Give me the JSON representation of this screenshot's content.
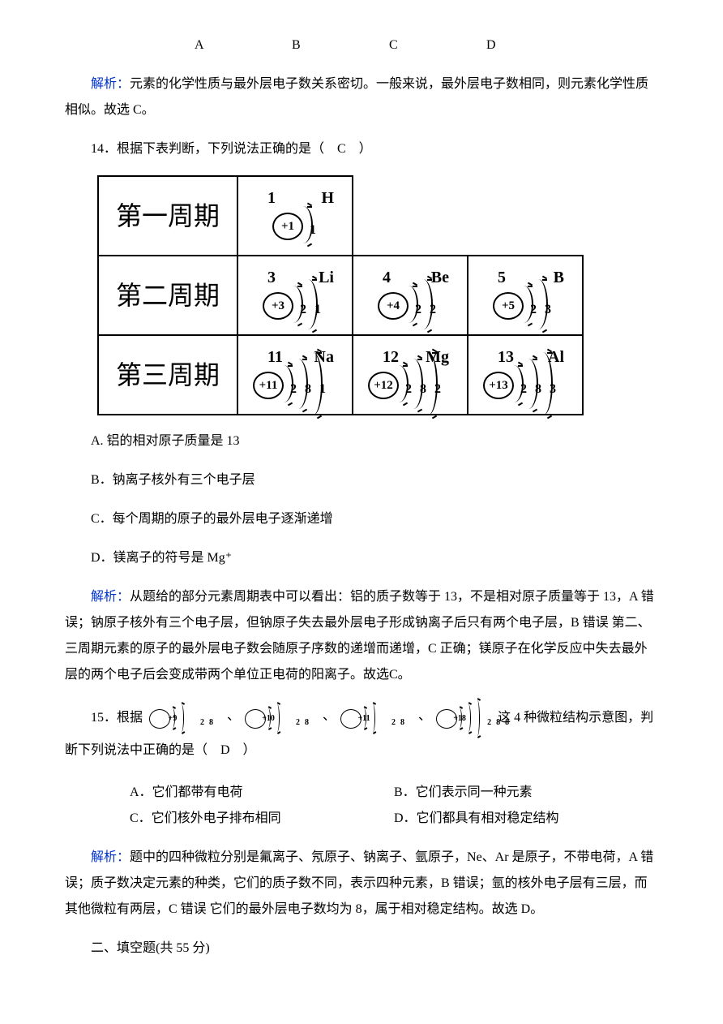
{
  "abcd": {
    "a": "A",
    "b": "B",
    "c": "C",
    "d": "D"
  },
  "analysis_label": "解析：",
  "q13_analysis": "元素的化学性质与最外层电子数关系密切。一般来说，最外层电子数相同，则元素化学性质相似。故选 C。",
  "q14": {
    "stem": "14．根据下表判断，下列说法正确的是（　C　）",
    "rows": [
      {
        "label": "第一周期",
        "cells": [
          {
            "num": "1",
            "sym": "H",
            "nuc": "+1",
            "shells": [
              "1"
            ]
          }
        ],
        "blanks": 2
      },
      {
        "label": "第二周期",
        "cells": [
          {
            "num": "3",
            "sym": "Li",
            "nuc": "+3",
            "shells": [
              "2",
              "1"
            ]
          },
          {
            "num": "4",
            "sym": "Be",
            "nuc": "+4",
            "shells": [
              "2",
              "2"
            ]
          },
          {
            "num": "5",
            "sym": "B",
            "nuc": "+5",
            "shells": [
              "2",
              "3"
            ]
          }
        ],
        "blanks": 0
      },
      {
        "label": "第三周期",
        "cells": [
          {
            "num": "11",
            "sym": "Na",
            "nuc": "+11",
            "shells": [
              "2",
              "8",
              "1"
            ]
          },
          {
            "num": "12",
            "sym": "Mg",
            "nuc": "+12",
            "shells": [
              "2",
              "8",
              "2"
            ]
          },
          {
            "num": "13",
            "sym": "Al",
            "nuc": "+13",
            "shells": [
              "2",
              "8",
              "3"
            ]
          }
        ],
        "blanks": 0
      }
    ],
    "opts": {
      "a": "A. 铝的相对原子质量是 13",
      "b": "B．钠离子核外有三个电子层",
      "c": "C．每个周期的原子的最外层电子逐渐递增",
      "d": "D．镁离子的符号是 Mg⁺"
    },
    "analysis": "从题给的部分元素周期表中可以看出：铝的质子数等于 13，不是相对原子质量等于 13，A 错误；钠原子核外有三个电子层，但钠原子失去最外层电子形成钠离子后只有两个电子层，B 错误 第二、三周期元素的原子的最外层电子数会随原子序数的递增而递增，C 正确；镁原子在化学反应中失去最外层的两个电子后会变成带两个单位正电荷的阳离子。故选C。"
  },
  "q15": {
    "stem_a": "15．根据",
    "stem_b": "这 4 种微粒结构示意图，判断下列说法中正确的是（　D　）",
    "particles": [
      {
        "nuc": "+9",
        "shells": [
          "2",
          "8"
        ]
      },
      {
        "nuc": "+10",
        "shells": [
          "2",
          "8"
        ]
      },
      {
        "nuc": "+11",
        "shells": [
          "2",
          "8"
        ]
      },
      {
        "nuc": "+18",
        "shells": [
          "2",
          "8",
          "8"
        ]
      }
    ],
    "opts": {
      "a": "A．它们都带有电荷",
      "b": "B．它们表示同一种元素",
      "c": "C．它们核外电子排布相同",
      "d": "D．它们都具有相对稳定结构"
    },
    "analysis": "题中的四种微粒分别是氟离子、氖原子、钠离子、氩原子，Ne、Ar 是原子，不带电荷，A 错误；质子数决定元素的种类，它们的质子数不同，表示四种元素，B 错误；氩的核外电子层有三层，而其他微粒有两层，C 错误 它们的最外层电子数均为 8，属于相对稳定结构。故选 D。"
  },
  "section2": "二、填空题(共 55 分)"
}
